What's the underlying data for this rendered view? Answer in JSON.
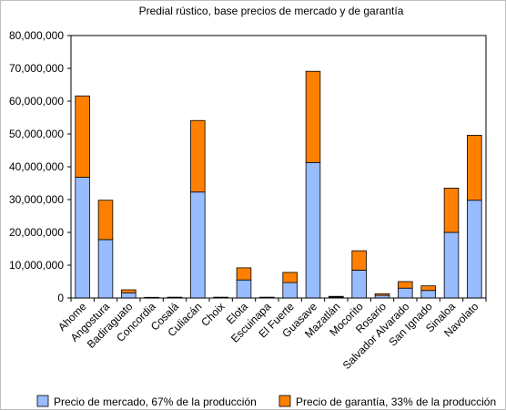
{
  "chart_data": {
    "type": "bar",
    "stacked": true,
    "title": "Predial rústico, base precios de mercado y de garantía",
    "xlabel": "",
    "ylabel": "",
    "ylim": [
      0,
      80000000
    ],
    "yticks": [
      "0",
      "10,000,000",
      "20,000,000",
      "30,000,000",
      "40,000,000",
      "50,000,000",
      "60,000,000",
      "70,000,000",
      "80,000,000"
    ],
    "categories": [
      "Ahome",
      "Angostura",
      "Badiraguato",
      "Concordia",
      "Cosalá",
      "Culiacán",
      "Choix",
      "Elota",
      "Escuinapa",
      "El Fuerte",
      "Guasave",
      "Mazatlán",
      "Mocorito",
      "Rosario",
      "Salvador Alvarado",
      "San Ignado",
      "Sinaloa",
      "Navolato"
    ],
    "series": [
      {
        "name": "Precio de mercado, 67% de la producción",
        "color": "#99bbff",
        "values": [
          36800000,
          17800000,
          1600000,
          100000,
          150000,
          32300000,
          150000,
          5500000,
          150000,
          4700000,
          41300000,
          300000,
          8500000,
          800000,
          3000000,
          2300000,
          20000000,
          29800000
        ]
      },
      {
        "name": "Precio de garantía, 33% de la producción",
        "color": "#ff8000",
        "values": [
          24800000,
          12000000,
          900000,
          100000,
          100000,
          21800000,
          100000,
          3700000,
          100000,
          3100000,
          27800000,
          200000,
          5900000,
          500000,
          2000000,
          1400000,
          13500000,
          19800000
        ]
      }
    ],
    "grid": false,
    "legend": "bottom"
  }
}
